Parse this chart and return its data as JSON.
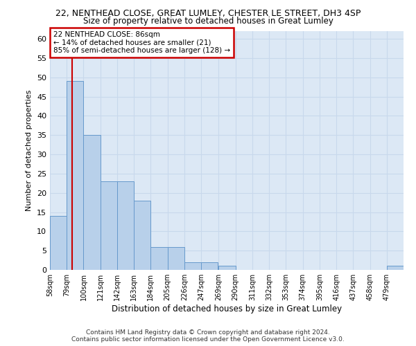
{
  "title1": "22, NENTHEAD CLOSE, GREAT LUMLEY, CHESTER LE STREET, DH3 4SP",
  "title2": "Size of property relative to detached houses in Great Lumley",
  "xlabel": "Distribution of detached houses by size in Great Lumley",
  "ylabel": "Number of detached properties",
  "bin_labels": [
    "58sqm",
    "79sqm",
    "100sqm",
    "121sqm",
    "142sqm",
    "163sqm",
    "184sqm",
    "205sqm",
    "226sqm",
    "247sqm",
    "269sqm",
    "290sqm",
    "311sqm",
    "332sqm",
    "353sqm",
    "374sqm",
    "395sqm",
    "416sqm",
    "437sqm",
    "458sqm",
    "479sqm"
  ],
  "bar_heights": [
    14,
    49,
    35,
    23,
    23,
    18,
    6,
    6,
    2,
    2,
    1,
    0,
    0,
    0,
    0,
    0,
    0,
    0,
    0,
    0,
    1
  ],
  "bar_color": "#b8d0ea",
  "bar_edge_color": "#6699cc",
  "annotation_line1": "22 NENTHEAD CLOSE: 86sqm",
  "annotation_line2": "← 14% of detached houses are smaller (21)",
  "annotation_line3": "85% of semi-detached houses are larger (128) →",
  "annotation_box_color": "#cc0000",
  "vline_x": 86,
  "vline_color": "#cc0000",
  "bin_edges_sqm": [
    58,
    79,
    100,
    121,
    142,
    163,
    184,
    205,
    226,
    247,
    269,
    290,
    311,
    332,
    353,
    374,
    395,
    416,
    437,
    458,
    479
  ],
  "bin_width": 21,
  "ylim": [
    0,
    62
  ],
  "yticks": [
    0,
    5,
    10,
    15,
    20,
    25,
    30,
    35,
    40,
    45,
    50,
    55,
    60
  ],
  "grid_color": "#c8d8ec",
  "background_color": "#dce8f5",
  "footer1": "Contains HM Land Registry data © Crown copyright and database right 2024.",
  "footer2": "Contains public sector information licensed under the Open Government Licence v3.0."
}
